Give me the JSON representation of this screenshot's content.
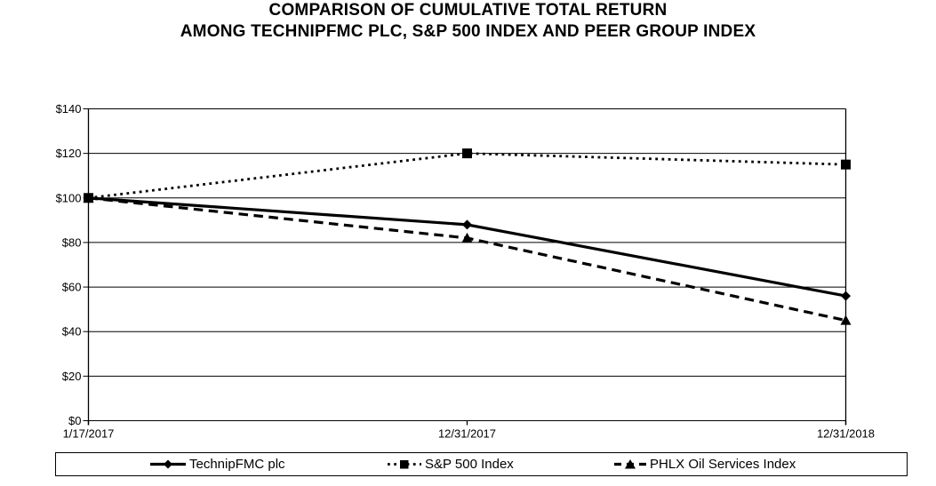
{
  "chart_data": {
    "type": "line",
    "title": "COMPARISON OF CUMULATIVE TOTAL RETURN",
    "subtitle": "AMONG TECHNIPFMC PLC, S&P 500 INDEX AND PEER GROUP INDEX",
    "categories": [
      "1/17/2017",
      "12/31/2017",
      "12/31/2018"
    ],
    "series": [
      {
        "name": "TechnipFMC plc",
        "line_style": "solid",
        "marker": "diamond",
        "values": [
          100,
          88,
          56
        ]
      },
      {
        "name": "S&P 500 Index",
        "line_style": "dotted",
        "marker": "square",
        "values": [
          100,
          120,
          115
        ]
      },
      {
        "name": "PHLX Oil Services Index",
        "line_style": "dashed",
        "marker": "triangle",
        "values": [
          100,
          82,
          45
        ]
      }
    ],
    "ylim": [
      0,
      140
    ],
    "ytick_interval": 20,
    "ytick_labels": [
      "$0",
      "$20",
      "$40",
      "$60",
      "$80",
      "$100",
      "$120",
      "$140"
    ],
    "xlabel": "",
    "ylabel": "",
    "grid": "horizontal",
    "legend_position": "bottom",
    "line_color": "#000000",
    "background_color": "#ffffff"
  }
}
